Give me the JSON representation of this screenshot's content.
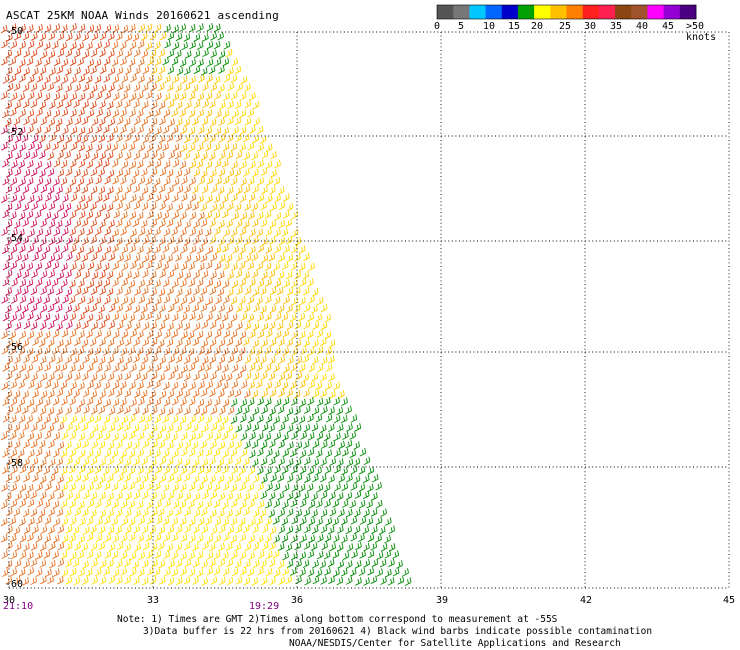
{
  "title": "ASCAT 25KM NOAA Winds 20160621 ascending",
  "legend": {
    "ticks": [
      "0",
      "5",
      "10",
      "15",
      "20",
      "25",
      "30",
      "35",
      "40",
      "45",
      ">50 knots"
    ],
    "colors": [
      "#555555",
      "#777777",
      "#00c8ff",
      "#0066ff",
      "#0000cc",
      "#00a000",
      "#ffff00",
      "#ffc000",
      "#ff8000",
      "#ff2020",
      "#ff2050",
      "#8b4513",
      "#a0522d",
      "#ff00ff",
      "#9400d3",
      "#4b0082"
    ]
  },
  "map": {
    "lon_ticks": [
      "30",
      "33",
      "36",
      "39",
      "42",
      "45"
    ],
    "lat_ticks": [
      "-50",
      "-52",
      "-54",
      "-56",
      "-58",
      "-60"
    ],
    "time_labels": [
      "21:10",
      "19:29"
    ]
  },
  "notes": {
    "line1": "Note: 1) Times are GMT 2)Times along bottom correspond to measurement at -55S",
    "line2": "3)Data buffer is 22 hrs from 20160621 4) Black wind barbs indicate possible contamination",
    "line3": "NOAA/NESDIS/Center for Satellite Applications and Research"
  }
}
